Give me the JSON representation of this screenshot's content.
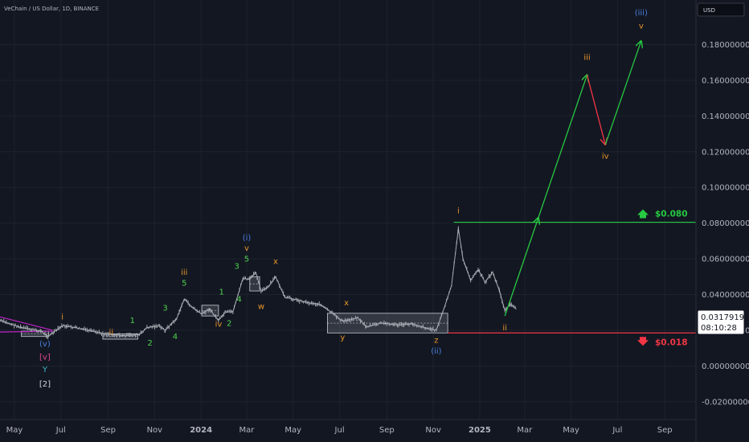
{
  "symbol_title": "VeChain / US Dollar, 1D, BINANCE",
  "currency": "USD",
  "colors": {
    "background": "#131722",
    "text": "#b2b5be",
    "candle": "#a7aab1",
    "target_line": "#26c941",
    "stop_line": "#f23645",
    "up_arrow": "#26c941",
    "down_arrow": "#f23645",
    "wave_orange": "#e8962a",
    "wave_green": "#4ed34e",
    "wave_blue": "#4a7fe0",
    "wave_pink": "#e0458f",
    "wave_cyan": "#3fb6c6",
    "wave_white": "#d1d4dc",
    "channel": "#c026c9",
    "box_fill": "rgba(200,205,215,0.18)",
    "box_stroke": "#c8cdd5"
  },
  "chart_data": {
    "type": "line",
    "title": "VeChain / US Dollar, 1D, BINANCE",
    "ylim": [
      -0.03,
      0.205
    ],
    "price_axis_ticks": [
      "0.18000000",
      "0.16000000",
      "0.14000000",
      "0.12000000",
      "0.10000000",
      "0.08000000",
      "0.06000000",
      "0.04000000",
      "0.02000000",
      "0.00000000",
      "-0.02000000"
    ],
    "price_tick_values": [
      0.18,
      0.16,
      0.14,
      0.12,
      0.1,
      0.08,
      0.06,
      0.04,
      0.02,
      0.0,
      -0.02
    ],
    "time_axis_labels": [
      {
        "label": "May",
        "x": "2023-05-01",
        "bold": false
      },
      {
        "label": "Jul",
        "x": "2023-07-01",
        "bold": false
      },
      {
        "label": "Sep",
        "x": "2023-09-01",
        "bold": false
      },
      {
        "label": "Nov",
        "x": "2023-11-01",
        "bold": false
      },
      {
        "label": "2024",
        "x": "2024-01-01",
        "bold": true
      },
      {
        "label": "Mar",
        "x": "2024-03-01",
        "bold": false
      },
      {
        "label": "May",
        "x": "2024-05-01",
        "bold": false
      },
      {
        "label": "Jul",
        "x": "2024-07-01",
        "bold": false
      },
      {
        "label": "Sep",
        "x": "2024-09-01",
        "bold": false
      },
      {
        "label": "Nov",
        "x": "2024-11-01",
        "bold": false
      },
      {
        "label": "2025",
        "x": "2025-01-01",
        "bold": true
      },
      {
        "label": "Mar",
        "x": "2025-03-01",
        "bold": false
      },
      {
        "label": "May",
        "x": "2025-05-01",
        "bold": false
      },
      {
        "label": "Jul",
        "x": "2025-07-01",
        "bold": false
      },
      {
        "label": "Sep",
        "x": "2025-09-01",
        "bold": false
      }
    ],
    "x_range": [
      "2023-04-12",
      "2025-10-12"
    ],
    "price_series": [
      {
        "x": "2023-04-12",
        "y": 0.0255
      },
      {
        "x": "2023-05-10",
        "y": 0.0215
      },
      {
        "x": "2023-06-05",
        "y": 0.0195
      },
      {
        "x": "2023-06-14",
        "y": 0.0165
      },
      {
        "x": "2023-06-22",
        "y": 0.019
      },
      {
        "x": "2023-07-03",
        "y": 0.0225
      },
      {
        "x": "2023-07-20",
        "y": 0.0215
      },
      {
        "x": "2023-08-10",
        "y": 0.0195
      },
      {
        "x": "2023-08-25",
        "y": 0.0182
      },
      {
        "x": "2023-09-20",
        "y": 0.017
      },
      {
        "x": "2023-10-12",
        "y": 0.0175
      },
      {
        "x": "2023-10-22",
        "y": 0.0215
      },
      {
        "x": "2023-11-06",
        "y": 0.0225
      },
      {
        "x": "2023-11-15",
        "y": 0.02
      },
      {
        "x": "2023-11-30",
        "y": 0.0265
      },
      {
        "x": "2023-12-10",
        "y": 0.0375
      },
      {
        "x": "2023-12-20",
        "y": 0.033
      },
      {
        "x": "2024-01-02",
        "y": 0.029
      },
      {
        "x": "2024-01-12",
        "y": 0.032
      },
      {
        "x": "2024-01-24",
        "y": 0.0255
      },
      {
        "x": "2024-02-02",
        "y": 0.03
      },
      {
        "x": "2024-02-12",
        "y": 0.0305
      },
      {
        "x": "2024-02-25",
        "y": 0.049
      },
      {
        "x": "2024-03-05",
        "y": 0.0485
      },
      {
        "x": "2024-03-13",
        "y": 0.0525
      },
      {
        "x": "2024-03-20",
        "y": 0.042
      },
      {
        "x": "2024-03-29",
        "y": 0.044
      },
      {
        "x": "2024-04-08",
        "y": 0.05
      },
      {
        "x": "2024-04-20",
        "y": 0.0385
      },
      {
        "x": "2024-05-01",
        "y": 0.0375
      },
      {
        "x": "2024-05-20",
        "y": 0.0355
      },
      {
        "x": "2024-06-05",
        "y": 0.0345
      },
      {
        "x": "2024-06-20",
        "y": 0.03
      },
      {
        "x": "2024-07-05",
        "y": 0.025
      },
      {
        "x": "2024-07-25",
        "y": 0.027
      },
      {
        "x": "2024-08-05",
        "y": 0.022
      },
      {
        "x": "2024-08-25",
        "y": 0.024
      },
      {
        "x": "2024-09-15",
        "y": 0.023
      },
      {
        "x": "2024-10-05",
        "y": 0.0235
      },
      {
        "x": "2024-10-25",
        "y": 0.021
      },
      {
        "x": "2024-11-05",
        "y": 0.02
      },
      {
        "x": "2024-11-15",
        "y": 0.032
      },
      {
        "x": "2024-11-25",
        "y": 0.045
      },
      {
        "x": "2024-12-04",
        "y": 0.077
      },
      {
        "x": "2024-12-10",
        "y": 0.06
      },
      {
        "x": "2024-12-20",
        "y": 0.048
      },
      {
        "x": "2024-12-30",
        "y": 0.054
      },
      {
        "x": "2025-01-08",
        "y": 0.047
      },
      {
        "x": "2025-01-18",
        "y": 0.0525
      },
      {
        "x": "2025-01-27",
        "y": 0.042
      },
      {
        "x": "2025-02-03",
        "y": 0.031
      },
      {
        "x": "2025-02-10",
        "y": 0.0345
      },
      {
        "x": "2025-02-18",
        "y": 0.0318
      }
    ],
    "projection": [
      {
        "x": "2025-02-03",
        "y": 0.028,
        "color": "green"
      },
      {
        "x": "2025-05-22",
        "y": 0.163,
        "color": "red"
      },
      {
        "x": "2025-06-15",
        "y": 0.124,
        "color": "green"
      },
      {
        "x": "2025-08-01",
        "y": 0.182
      }
    ],
    "levels": [
      {
        "label": "$0.080",
        "y": 0.0805,
        "x_from": "2024-11-28",
        "color_key": "target_line",
        "arrow": "up"
      },
      {
        "label": "$0.018",
        "y": 0.0185,
        "x_from": "2024-11-20",
        "color_key": "stop_line",
        "arrow": "down"
      }
    ],
    "current_price": "0.03179199",
    "countdown": "08:10:28",
    "boxes": [
      {
        "x0": "2024-06-15",
        "x1": "2024-11-20",
        "y0": 0.0185,
        "y1": 0.0295
      },
      {
        "x0": "2023-08-25",
        "x1": "2023-10-10",
        "y0": 0.015,
        "y1": 0.018
      },
      {
        "x0": "2024-01-02",
        "x1": "2024-01-24",
        "y0": 0.028,
        "y1": 0.034
      },
      {
        "x0": "2024-03-05",
        "x1": "2024-03-18",
        "y0": 0.042,
        "y1": 0.05
      },
      {
        "x0": "2023-05-10",
        "x1": "2023-06-15",
        "y0": 0.0165,
        "y1": 0.0195
      }
    ],
    "channel_lines": [
      {
        "x0": "2023-04-12",
        "y0": 0.0275,
        "x1": "2023-06-20",
        "y1": 0.02
      },
      {
        "x0": "2023-04-12",
        "y0": 0.019,
        "x1": "2023-06-20",
        "y1": 0.0195
      }
    ],
    "wave_labels": [
      {
        "text": "(iii)",
        "x": "2025-08-01",
        "y": 0.1965,
        "color_key": "wave_blue"
      },
      {
        "text": "v",
        "x": "2025-08-01",
        "y": 0.189,
        "color_key": "wave_orange"
      },
      {
        "text": "iii",
        "x": "2025-05-22",
        "y": 0.1715,
        "color_key": "wave_orange"
      },
      {
        "text": "iv",
        "x": "2025-06-15",
        "y": 0.116,
        "color_key": "wave_orange"
      },
      {
        "text": "i",
        "x": "2024-12-04",
        "y": 0.0855,
        "color_key": "wave_orange"
      },
      {
        "text": "ii",
        "x": "2025-02-03",
        "y": 0.02,
        "color_key": "wave_orange"
      },
      {
        "text": "z",
        "x": "2024-11-05",
        "y": 0.013,
        "color_key": "wave_orange"
      },
      {
        "text": "(ii)",
        "x": "2024-11-05",
        "y": 0.007,
        "color_key": "wave_blue"
      },
      {
        "text": "x",
        "x": "2024-07-10",
        "y": 0.034,
        "color_key": "wave_orange"
      },
      {
        "text": "y",
        "x": "2024-07-05",
        "y": 0.0145,
        "color_key": "wave_orange"
      },
      {
        "text": "x",
        "x": "2024-04-08",
        "y": 0.057,
        "color_key": "wave_orange"
      },
      {
        "text": "w",
        "x": "2024-03-20",
        "y": 0.032,
        "color_key": "wave_orange"
      },
      {
        "text": "(i)",
        "x": "2024-03-01",
        "y": 0.0705,
        "color_key": "wave_blue"
      },
      {
        "text": "v",
        "x": "2024-03-01",
        "y": 0.0645,
        "color_key": "wave_orange"
      },
      {
        "text": "5",
        "x": "2024-03-01",
        "y": 0.0585,
        "color_key": "wave_green"
      },
      {
        "text": "3",
        "x": "2024-02-17",
        "y": 0.0545,
        "color_key": "wave_green"
      },
      {
        "text": "4",
        "x": "2024-02-20",
        "y": 0.036,
        "color_key": "wave_green"
      },
      {
        "text": "iii",
        "x": "2023-12-10",
        "y": 0.051,
        "color_key": "wave_orange"
      },
      {
        "text": "5",
        "x": "2023-12-10",
        "y": 0.045,
        "color_key": "wave_green"
      },
      {
        "text": "1",
        "x": "2024-01-28",
        "y": 0.04,
        "color_key": "wave_green"
      },
      {
        "text": "2",
        "x": "2024-02-07",
        "y": 0.0225,
        "color_key": "wave_green"
      },
      {
        "text": "iv",
        "x": "2024-01-24",
        "y": 0.022,
        "color_key": "wave_orange"
      },
      {
        "text": "3",
        "x": "2023-11-15",
        "y": 0.031,
        "color_key": "wave_green"
      },
      {
        "text": "4",
        "x": "2023-11-28",
        "y": 0.015,
        "color_key": "wave_green"
      },
      {
        "text": "2",
        "x": "2023-10-26",
        "y": 0.0115,
        "color_key": "wave_green"
      },
      {
        "text": "1",
        "x": "2023-10-03",
        "y": 0.024,
        "color_key": "wave_green"
      },
      {
        "text": "ii",
        "x": "2023-09-05",
        "y": 0.0175,
        "color_key": "wave_orange"
      },
      {
        "text": "i",
        "x": "2023-07-03",
        "y": 0.026,
        "color_key": "wave_orange"
      },
      {
        "text": "(v)",
        "x": "2023-06-10",
        "y": 0.011,
        "color_key": "wave_blue"
      },
      {
        "text": "[v]",
        "x": "2023-06-10",
        "y": 0.0035,
        "color_key": "wave_pink"
      },
      {
        "text": "Y",
        "x": "2023-06-10",
        "y": -0.0035,
        "color_key": "wave_cyan"
      },
      {
        "text": "[2]",
        "x": "2023-06-10",
        "y": -0.0115,
        "color_key": "wave_white"
      }
    ]
  }
}
